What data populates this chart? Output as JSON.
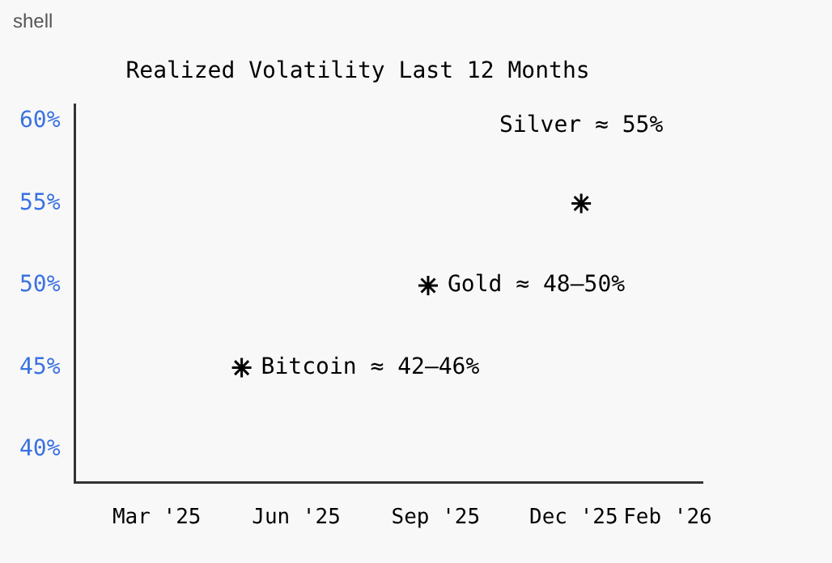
{
  "chart_data": {
    "type": "scatter",
    "title": "Realized Volatility Last 12 Months",
    "annotations": [
      "shell",
      {
        "text": "Bitcoin ≈ 42–46%",
        "x": "2025-05-10",
        "y": 45
      },
      {
        "text": "Gold ≈ 48–50%",
        "x": "2025-09-10",
        "y": 50
      },
      {
        "text": "Silver ≈ 55%",
        "x": "2025-12-20",
        "y": 55
      }
    ],
    "series": [
      {
        "color": "#000000",
        "x": [
          "2025-05-10",
          "2025-09-10",
          "2025-12-20"
        ],
        "values": [
          45,
          50,
          55
        ]
      }
    ],
    "xlim": [
      "2025-01-20",
      "2026-03-10"
    ],
    "xticks": [
      {
        "value": "2025-03-15",
        "label": "Mar '25"
      },
      {
        "value": "2025-06-15",
        "label": "Jun '25"
      },
      {
        "value": "2025-09-15",
        "label": "Sep '25"
      },
      {
        "value": "2025-12-15",
        "label": "Dec '25"
      },
      {
        "value": "2026-02-15",
        "label": "Feb '26"
      }
    ],
    "ylim": [
      38,
      61
    ],
    "yticks": [
      {
        "value": 40,
        "label": "40%"
      },
      {
        "value": 45,
        "label": "45%"
      },
      {
        "value": 50,
        "label": "50%"
      },
      {
        "value": 55,
        "label": "55%"
      },
      {
        "value": 60,
        "label": "60%"
      }
    ],
    "grid": false,
    "legend": false,
    "marker": "cross"
  }
}
